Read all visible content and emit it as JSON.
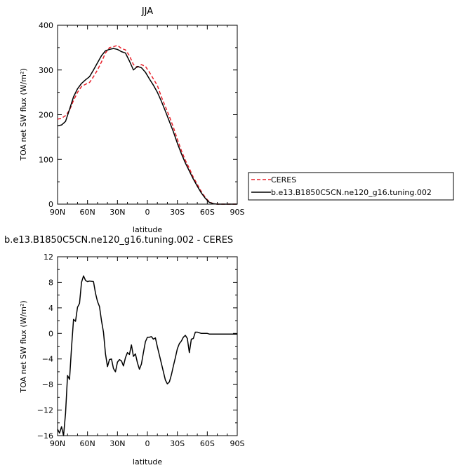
{
  "chart_data": [
    {
      "type": "line",
      "title": "JJA",
      "xlabel": "latitude",
      "ylabel": "TOA net SW flux (W/m²)",
      "xlim": [
        90,
        -90
      ],
      "ylim": [
        0,
        400
      ],
      "xticks": [
        90,
        60,
        30,
        0,
        -30,
        -60,
        -90
      ],
      "xtick_labels": [
        "90N",
        "60N",
        "30N",
        "0",
        "30S",
        "60S",
        "90S"
      ],
      "yticks": [
        0,
        100,
        200,
        300,
        400
      ],
      "ytick_labels": [
        "0",
        "100",
        "200",
        "300",
        "400"
      ],
      "grid": false,
      "legend": {
        "placement": "right-bottom"
      },
      "series": [
        {
          "name": "CERES",
          "color": "#e8202a",
          "style": "dashed",
          "x": [
            90,
            86,
            82,
            78,
            74,
            70,
            66,
            62,
            58,
            54,
            50,
            46,
            42,
            38,
            34,
            30,
            26,
            22,
            18,
            14,
            10,
            6,
            2,
            -2,
            -6,
            -10,
            -14,
            -18,
            -22,
            -26,
            -30,
            -34,
            -38,
            -42,
            -46,
            -50,
            -54,
            -58,
            -62,
            -66,
            -70,
            -74,
            -78,
            -82,
            -86,
            -90
          ],
          "y": [
            190,
            192,
            198,
            210,
            232,
            250,
            263,
            268,
            272,
            285,
            300,
            318,
            338,
            350,
            352,
            355,
            348,
            345,
            332,
            312,
            306,
            312,
            308,
            295,
            280,
            265,
            240,
            218,
            196,
            172,
            145,
            120,
            98,
            80,
            60,
            44,
            28,
            15,
            5,
            1,
            0,
            0,
            0,
            0,
            0,
            0
          ]
        },
        {
          "name": "b.e13.B1850C5CN.ne120_g16.tuning.002",
          "color": "#000000",
          "style": "solid",
          "x": [
            90,
            86,
            82,
            78,
            74,
            70,
            66,
            62,
            58,
            54,
            50,
            46,
            42,
            38,
            34,
            30,
            26,
            22,
            18,
            14,
            10,
            6,
            2,
            -2,
            -6,
            -10,
            -14,
            -18,
            -22,
            -26,
            -30,
            -34,
            -38,
            -42,
            -46,
            -50,
            -54,
            -58,
            -62,
            -66,
            -70,
            -74,
            -78,
            -82,
            -86,
            -90
          ],
          "y": [
            175,
            177,
            185,
            212,
            240,
            258,
            270,
            278,
            285,
            300,
            316,
            332,
            343,
            346,
            348,
            346,
            341,
            338,
            320,
            300,
            308,
            305,
            295,
            280,
            266,
            250,
            230,
            208,
            185,
            162,
            136,
            113,
            92,
            74,
            56,
            40,
            25,
            13,
            4,
            1,
            0,
            0,
            0,
            0,
            0,
            0
          ]
        }
      ]
    },
    {
      "type": "line",
      "title": "b.e13.B1850C5CN.ne120_g16.tuning.002 - CERES",
      "xlabel": "latitude",
      "ylabel": "TOA net SW flux (W/m²)",
      "xlim": [
        90,
        -90
      ],
      "ylim": [
        -16,
        12
      ],
      "xticks": [
        90,
        60,
        30,
        0,
        -30,
        -60,
        -90
      ],
      "xtick_labels": [
        "90N",
        "60N",
        "30N",
        "0",
        "30S",
        "60S",
        "90S"
      ],
      "yticks": [
        -16,
        -12,
        -8,
        -4,
        0,
        4,
        8,
        12
      ],
      "ytick_labels": [
        "−16",
        "−12",
        "−8",
        "−4",
        "0",
        "4",
        "8",
        "12"
      ],
      "grid": false,
      "series": [
        {
          "color": "#000000",
          "style": "solid",
          "x": [
            90,
            88,
            86,
            84,
            82,
            80,
            78,
            76,
            74,
            72,
            70,
            68,
            66,
            64,
            62,
            60,
            58,
            54,
            52,
            50,
            48,
            46,
            44,
            42,
            40,
            38,
            36,
            34,
            32,
            30,
            28,
            26,
            24,
            22,
            20,
            18,
            16,
            14,
            12,
            10,
            8,
            6,
            4,
            2,
            0,
            -2,
            -4,
            -6,
            -8,
            -10,
            -12,
            -14,
            -16,
            -18,
            -20,
            -22,
            -24,
            -26,
            -28,
            -30,
            -32,
            -34,
            -36,
            -38,
            -40,
            -42,
            -44,
            -46,
            -48,
            -50,
            -52,
            -54,
            -56,
            -58,
            -60,
            -62,
            -64,
            -66,
            -68,
            -70,
            -72,
            -74,
            -76,
            -78,
            -80,
            -82,
            -84,
            -86,
            -88,
            -90
          ],
          "y": [
            -15,
            -15.6,
            -14.6,
            -16,
            -12.5,
            -6.6,
            -7.2,
            -2.2,
            2.2,
            1.9,
            4.1,
            4.7,
            8,
            9,
            8.3,
            8.1,
            8.2,
            8.1,
            6.3,
            5,
            4.2,
            2,
            0.2,
            -3.2,
            -5.2,
            -4.1,
            -4,
            -5.5,
            -6,
            -4.5,
            -4.1,
            -4.3,
            -5.1,
            -3.8,
            -3,
            -3.3,
            -1.8,
            -3.6,
            -3.2,
            -4.6,
            -5.6,
            -4.8,
            -3,
            -1.3,
            -0.6,
            -0.6,
            -0.5,
            -0.9,
            -0.7,
            -2.1,
            -3.4,
            -4.7,
            -6,
            -7.3,
            -7.9,
            -7.6,
            -6.5,
            -5.1,
            -3.8,
            -2.4,
            -1.6,
            -1.2,
            -0.6,
            -0.3,
            -0.8,
            -3,
            -0.9,
            -0.8,
            0.2,
            0.2,
            0.1,
            0,
            0,
            0,
            0,
            -0.1,
            -0.1,
            -0.1,
            -0.1,
            -0.1,
            -0.1,
            -0.1,
            -0.1,
            -0.1,
            -0.1,
            -0.1,
            -0.1,
            -0.1,
            -0.1,
            -0.1
          ]
        }
      ]
    }
  ]
}
